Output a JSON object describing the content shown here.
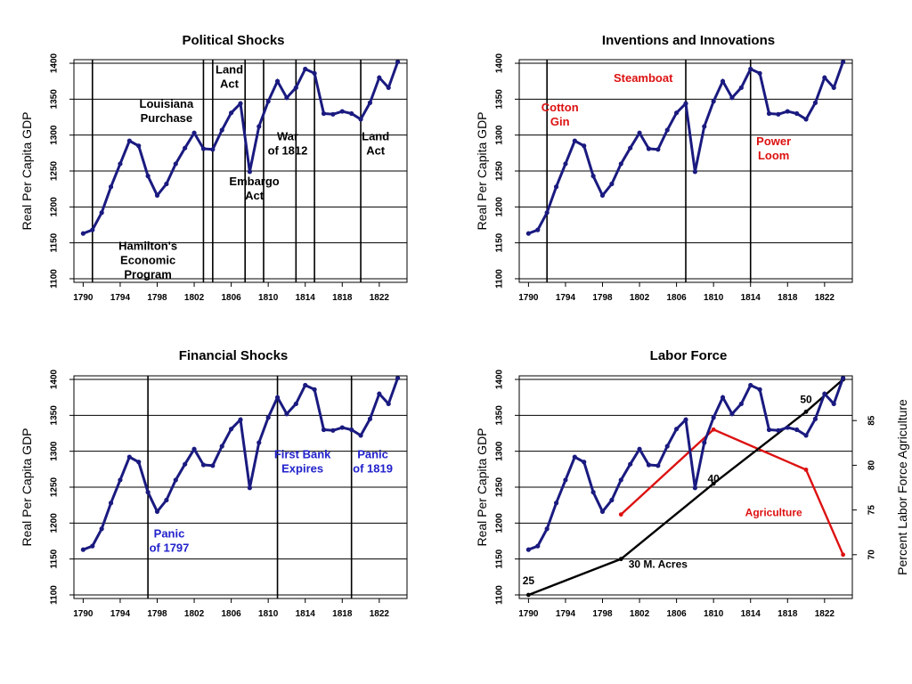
{
  "chart_data": [
    {
      "type": "line",
      "title": "Political Shocks",
      "ylabel": "Real Per Capita GDP",
      "xlabel": "",
      "xlim": [
        1789,
        1825
      ],
      "ylim": [
        1095,
        1405
      ],
      "x_ticks": [
        "1790",
        "1794",
        "1798",
        "1802",
        "1806",
        "1810",
        "1814",
        "1818",
        "1822"
      ],
      "y_ticks": [
        "1100",
        "1150",
        "1200",
        "1250",
        "1300",
        "1350",
        "1400"
      ],
      "grid": true,
      "x": [
        1790,
        1791,
        1792,
        1793,
        1794,
        1795,
        1796,
        1797,
        1798,
        1799,
        1800,
        1801,
        1802,
        1803,
        1804,
        1805,
        1806,
        1807,
        1808,
        1809,
        1810,
        1811,
        1812,
        1813,
        1814,
        1815,
        1816,
        1817,
        1818,
        1819,
        1820,
        1821,
        1822,
        1823,
        1824
      ],
      "y": [
        1163,
        1168,
        1192,
        1228,
        1260,
        1292,
        1285,
        1243,
        1216,
        1232,
        1260,
        1282,
        1303,
        1281,
        1280,
        1307,
        1331,
        1344,
        1249,
        1312,
        1347,
        1375,
        1352,
        1366,
        1392,
        1386,
        1330,
        1329,
        1333,
        1330,
        1322,
        1345,
        1380,
        1366,
        1402
      ],
      "series_color": "#1a1a80",
      "event_lines": [
        1791,
        1803,
        1804,
        1807.5,
        1809.5,
        1813,
        1815,
        1820
      ],
      "line_color": "#000000",
      "annotations": [
        {
          "lines": [
            "Hamilton's",
            "Economic",
            "Program"
          ],
          "x": 1797,
          "y": 1140,
          "color": "#000000"
        },
        {
          "lines": [
            "Louisiana",
            "Purchase"
          ],
          "x": 1799,
          "y": 1338,
          "color": "#000000"
        },
        {
          "lines": [
            "Land",
            "Act"
          ],
          "x": 1805.8,
          "y": 1386,
          "color": "#000000"
        },
        {
          "lines": [
            "Embargo",
            "Act"
          ],
          "x": 1808.5,
          "y": 1230,
          "color": "#000000"
        },
        {
          "lines": [
            "War",
            "of 1812"
          ],
          "x": 1812.1,
          "y": 1293,
          "color": "#000000"
        },
        {
          "lines": [
            "Land",
            "Act"
          ],
          "x": 1821.6,
          "y": 1293,
          "color": "#000000"
        }
      ]
    },
    {
      "type": "line",
      "title": "Inventions and Innovations",
      "ylabel": "Real Per Capita GDP",
      "xlabel": "",
      "xlim": [
        1789,
        1825
      ],
      "ylim": [
        1095,
        1405
      ],
      "x_ticks": [
        "1790",
        "1794",
        "1798",
        "1802",
        "1806",
        "1810",
        "1814",
        "1818",
        "1822"
      ],
      "y_ticks": [
        "1100",
        "1150",
        "1200",
        "1250",
        "1300",
        "1350",
        "1400"
      ],
      "grid": true,
      "x": [
        1790,
        1791,
        1792,
        1793,
        1794,
        1795,
        1796,
        1797,
        1798,
        1799,
        1800,
        1801,
        1802,
        1803,
        1804,
        1805,
        1806,
        1807,
        1808,
        1809,
        1810,
        1811,
        1812,
        1813,
        1814,
        1815,
        1816,
        1817,
        1818,
        1819,
        1820,
        1821,
        1822,
        1823,
        1824
      ],
      "y": [
        1163,
        1168,
        1192,
        1228,
        1260,
        1292,
        1285,
        1243,
        1216,
        1232,
        1260,
        1282,
        1303,
        1281,
        1280,
        1307,
        1331,
        1344,
        1249,
        1312,
        1347,
        1375,
        1352,
        1366,
        1392,
        1386,
        1330,
        1329,
        1333,
        1330,
        1322,
        1345,
        1380,
        1366,
        1402
      ],
      "series_color": "#1a1a80",
      "event_lines": [
        1792,
        1807,
        1814
      ],
      "line_color": "#000000",
      "annotations": [
        {
          "lines": [
            "Cotton",
            "Gin"
          ],
          "x": 1793.4,
          "y": 1333,
          "color": "#dd1111"
        },
        {
          "lines": [
            "Steamboat"
          ],
          "x": 1802.4,
          "y": 1374,
          "color": "#dd1111"
        },
        {
          "lines": [
            "Power",
            "Loom"
          ],
          "x": 1816.5,
          "y": 1286,
          "color": "#dd1111"
        }
      ]
    },
    {
      "type": "line",
      "title": "Financial Shocks",
      "ylabel": "Real Per Capita GDP",
      "xlabel": "",
      "xlim": [
        1789,
        1825
      ],
      "ylim": [
        1095,
        1405
      ],
      "x_ticks": [
        "1790",
        "1794",
        "1798",
        "1802",
        "1806",
        "1810",
        "1814",
        "1818",
        "1822"
      ],
      "y_ticks": [
        "1100",
        "1150",
        "1200",
        "1250",
        "1300",
        "1350",
        "1400"
      ],
      "grid": true,
      "x": [
        1790,
        1791,
        1792,
        1793,
        1794,
        1795,
        1796,
        1797,
        1798,
        1799,
        1800,
        1801,
        1802,
        1803,
        1804,
        1805,
        1806,
        1807,
        1808,
        1809,
        1810,
        1811,
        1812,
        1813,
        1814,
        1815,
        1816,
        1817,
        1818,
        1819,
        1820,
        1821,
        1822,
        1823,
        1824
      ],
      "y": [
        1163,
        1168,
        1192,
        1228,
        1260,
        1292,
        1285,
        1243,
        1216,
        1232,
        1260,
        1282,
        1303,
        1281,
        1280,
        1307,
        1331,
        1344,
        1249,
        1312,
        1347,
        1375,
        1352,
        1366,
        1392,
        1386,
        1330,
        1329,
        1333,
        1330,
        1322,
        1345,
        1380,
        1366,
        1402
      ],
      "series_color": "#1a1a80",
      "event_lines": [
        1797,
        1811,
        1819
      ],
      "line_color": "#000000",
      "annotations": [
        {
          "lines": [
            "Panic",
            "of 1797"
          ],
          "x": 1799.3,
          "y": 1180,
          "color": "#2222cc"
        },
        {
          "lines": [
            "First Bank",
            "Expires"
          ],
          "x": 1813.7,
          "y": 1290,
          "color": "#2222cc"
        },
        {
          "lines": [
            "Panic",
            "of 1819"
          ],
          "x": 1821.3,
          "y": 1290,
          "color": "#2222cc"
        }
      ]
    },
    {
      "type": "line",
      "title": "Labor Force",
      "ylabel": "Real Per Capita GDP",
      "y2label": "Percent Labor Force Agriculture",
      "xlabel": "",
      "xlim": [
        1789,
        1825
      ],
      "ylim": [
        1095,
        1405
      ],
      "y2lim": [
        65.1,
        90
      ],
      "x_ticks": [
        "1790",
        "1794",
        "1798",
        "1802",
        "1806",
        "1810",
        "1814",
        "1818",
        "1822"
      ],
      "y_ticks": [
        "1100",
        "1150",
        "1200",
        "1250",
        "1300",
        "1350",
        "1400"
      ],
      "y2_ticks": [
        "70",
        "75",
        "80",
        "85"
      ],
      "grid": true,
      "x": [
        1790,
        1791,
        1792,
        1793,
        1794,
        1795,
        1796,
        1797,
        1798,
        1799,
        1800,
        1801,
        1802,
        1803,
        1804,
        1805,
        1806,
        1807,
        1808,
        1809,
        1810,
        1811,
        1812,
        1813,
        1814,
        1815,
        1816,
        1817,
        1818,
        1819,
        1820,
        1821,
        1822,
        1823,
        1824
      ],
      "y": [
        1163,
        1168,
        1192,
        1228,
        1260,
        1292,
        1285,
        1243,
        1216,
        1232,
        1260,
        1282,
        1303,
        1281,
        1280,
        1307,
        1331,
        1344,
        1249,
        1312,
        1347,
        1375,
        1352,
        1366,
        1392,
        1386,
        1330,
        1329,
        1333,
        1330,
        1322,
        1345,
        1380,
        1366,
        1402
      ],
      "series_color": "#1a1a80",
      "extra_series": [
        {
          "name": "Agriculture",
          "color": "#dd1111",
          "axis": "y2",
          "x": [
            1800,
            1810,
            1820,
            1824
          ],
          "y": [
            74.5,
            84,
            79.5,
            70
          ]
        },
        {
          "name": "",
          "color": "#000000",
          "axis": "y",
          "x": [
            1790,
            1800,
            1810,
            1820,
            1824
          ],
          "y": [
            1100,
            1150,
            1255,
            1355,
            1400
          ]
        }
      ],
      "series_labels": [
        {
          "text": "Agriculture",
          "x": 1816.5,
          "y": 1210,
          "color": "#dd1111"
        },
        {
          "text": "25",
          "x": 1790,
          "y": 1115,
          "color": "#000000"
        },
        {
          "text": "30 M. Acres",
          "x": 1804,
          "y": 1138,
          "color": "#000000"
        },
        {
          "text": "40",
          "x": 1810,
          "y": 1257,
          "color": "#000000"
        },
        {
          "text": "50",
          "x": 1820,
          "y": 1367,
          "color": "#000000"
        }
      ]
    }
  ]
}
